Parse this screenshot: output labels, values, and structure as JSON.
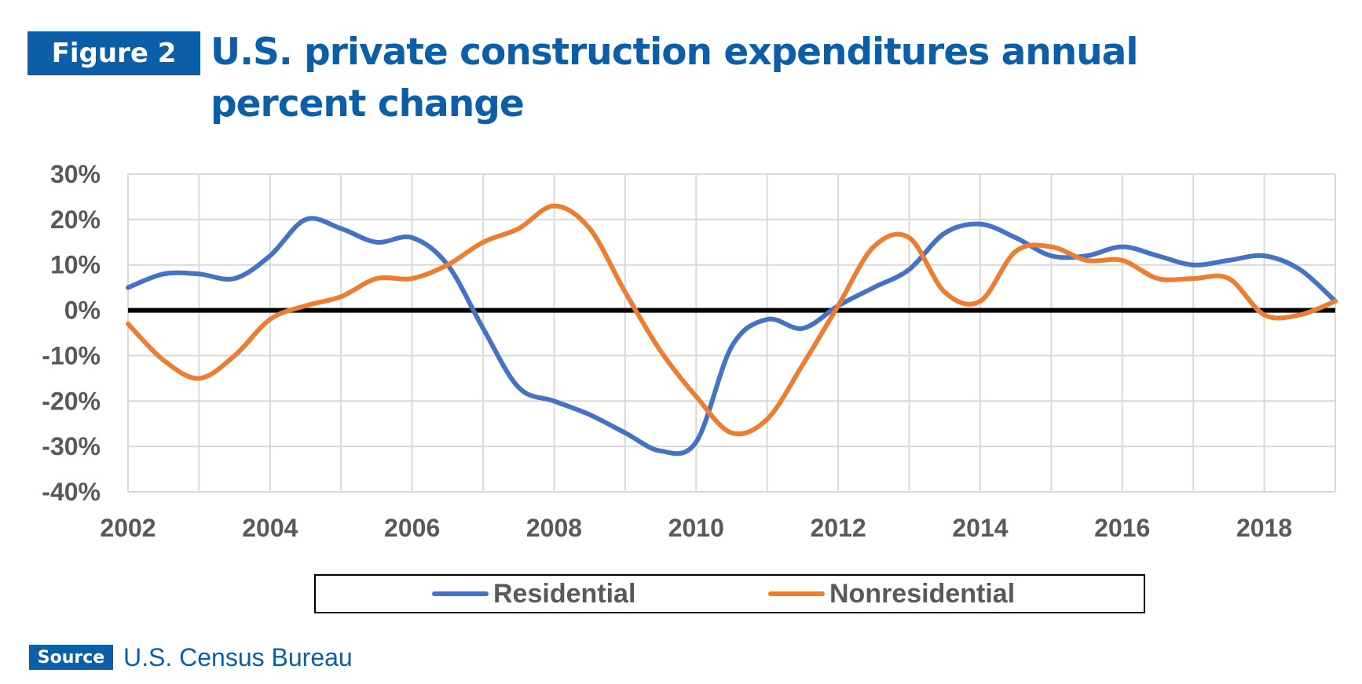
{
  "figure_label": "Figure 2",
  "title_lines": [
    "U.S. private construction expenditures annual",
    "percent change"
  ],
  "source_label": "Source",
  "source_text": "U.S. Census Bureau",
  "colors": {
    "brand": "#0b5ea8",
    "residential": "#4472c4",
    "nonresidential": "#ed7d31",
    "zero_line": "#000000",
    "grid": "#d9d9d9",
    "tick_text": "#595959"
  },
  "chart_data": {
    "type": "line",
    "title": "U.S. private construction expenditures annual percent change",
    "xlim": [
      2002,
      2019
    ],
    "ylim": [
      -40,
      30
    ],
    "x_ticks": [
      2002,
      2004,
      2006,
      2008,
      2010,
      2012,
      2014,
      2016,
      2018
    ],
    "x_tick_labels": [
      "2002",
      "2004",
      "2006",
      "2008",
      "2010",
      "2012",
      "2014",
      "2016",
      "2018"
    ],
    "y_ticks": [
      30,
      20,
      10,
      0,
      -10,
      -20,
      -30,
      -40
    ],
    "y_tick_labels": [
      "30%",
      "20%",
      "10%",
      "0%",
      "-10%",
      "-20%",
      "-30%",
      "-40%"
    ],
    "grid": true,
    "legend_position": "bottom",
    "series": [
      {
        "name": "Residential",
        "x": [
          2002.0,
          2002.5,
          2003.0,
          2003.5,
          2004.0,
          2004.5,
          2005.0,
          2005.5,
          2006.0,
          2006.5,
          2007.0,
          2007.5,
          2008.0,
          2008.5,
          2009.0,
          2009.5,
          2010.0,
          2010.5,
          2011.0,
          2011.5,
          2012.0,
          2012.5,
          2013.0,
          2013.5,
          2014.0,
          2014.5,
          2015.0,
          2015.5,
          2016.0,
          2016.5,
          2017.0,
          2017.5,
          2018.0,
          2018.5,
          2019.0
        ],
        "values": [
          5,
          8,
          8,
          7,
          12,
          20,
          18,
          15,
          16,
          10,
          -4,
          -17,
          -20,
          -23,
          -27,
          -31,
          -29,
          -8,
          -2,
          -4,
          1,
          5,
          9,
          17,
          19,
          16,
          12,
          12,
          14,
          12,
          10,
          11,
          12,
          9,
          2
        ]
      },
      {
        "name": "Nonresidential",
        "x": [
          2002.0,
          2002.5,
          2003.0,
          2003.5,
          2004.0,
          2004.5,
          2005.0,
          2005.5,
          2006.0,
          2006.5,
          2007.0,
          2007.5,
          2008.0,
          2008.5,
          2009.0,
          2009.5,
          2010.0,
          2010.5,
          2011.0,
          2011.5,
          2012.0,
          2012.5,
          2013.0,
          2013.5,
          2014.0,
          2014.5,
          2015.0,
          2015.5,
          2016.0,
          2016.5,
          2017.0,
          2017.5,
          2018.0,
          2018.5,
          2019.0
        ],
        "values": [
          -3,
          -11,
          -15,
          -10,
          -2,
          1,
          3,
          7,
          7,
          10,
          15,
          18,
          23,
          18,
          4,
          -9,
          -19,
          -27,
          -24,
          -12,
          1,
          14,
          16,
          4,
          2,
          13,
          14,
          11,
          11,
          7,
          7,
          7,
          -1,
          -1,
          2
        ]
      }
    ]
  }
}
